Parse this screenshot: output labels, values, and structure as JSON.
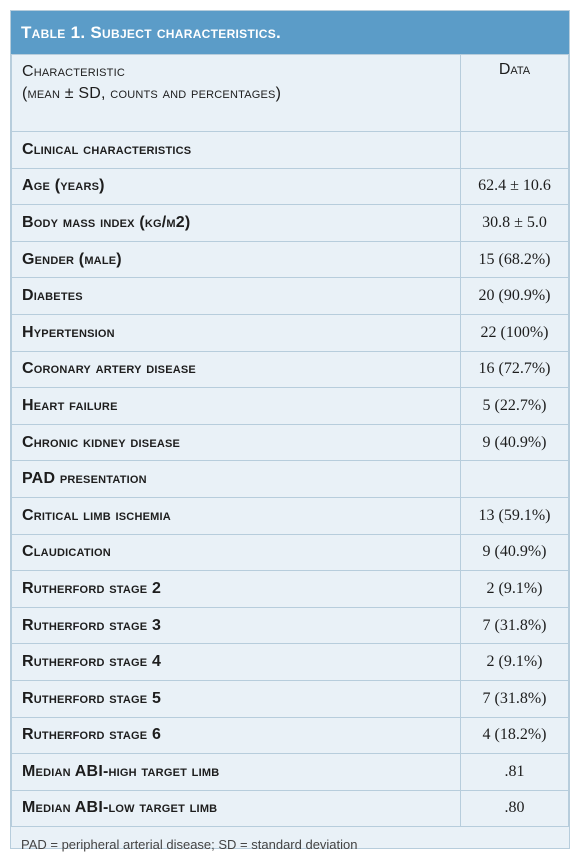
{
  "title": "Table 1. Subject characteristics.",
  "header": {
    "col1_line1": "Characteristic",
    "col1_line2": "(mean ± SD, counts and percentages)",
    "col2": "Data"
  },
  "rows": [
    {
      "label": "Clinical characteristics",
      "value": ""
    },
    {
      "label": "Age (years)",
      "value": "62.4 ± 10.6"
    },
    {
      "label": "Body mass index (kg/m2)",
      "value": "30.8 ± 5.0"
    },
    {
      "label": "Gender (male)",
      "value": "15 (68.2%)"
    },
    {
      "label": "Diabetes",
      "value": "20 (90.9%)"
    },
    {
      "label": "Hypertension",
      "value": "22 (100%)"
    },
    {
      "label": "Coronary artery disease",
      "value": "16 (72.7%)"
    },
    {
      "label": "Heart failure",
      "value": "5 (22.7%)"
    },
    {
      "label": "Chronic kidney disease",
      "value": "9 (40.9%)"
    },
    {
      "label": "PAD presentation",
      "value": ""
    },
    {
      "label": "Critical limb ischemia",
      "value": "13 (59.1%)"
    },
    {
      "label": "Claudication",
      "value": "9 (40.9%)"
    },
    {
      "label": "Rutherford stage 2",
      "value": "2 (9.1%)"
    },
    {
      "label": "Rutherford stage 3",
      "value": "7 (31.8%)"
    },
    {
      "label": "Rutherford stage 4",
      "value": "2 (9.1%)"
    },
    {
      "label": "Rutherford stage 5",
      "value": "7 (31.8%)"
    },
    {
      "label": "Rutherford stage 6",
      "value": "4 (18.2%)"
    },
    {
      "label": "Median ABI-high target limb",
      "value": ".81"
    },
    {
      "label": "Median ABI-low target limb",
      "value": ".80"
    }
  ],
  "footnote": "PAD = peripheral arterial disease; SD = standard deviation"
}
